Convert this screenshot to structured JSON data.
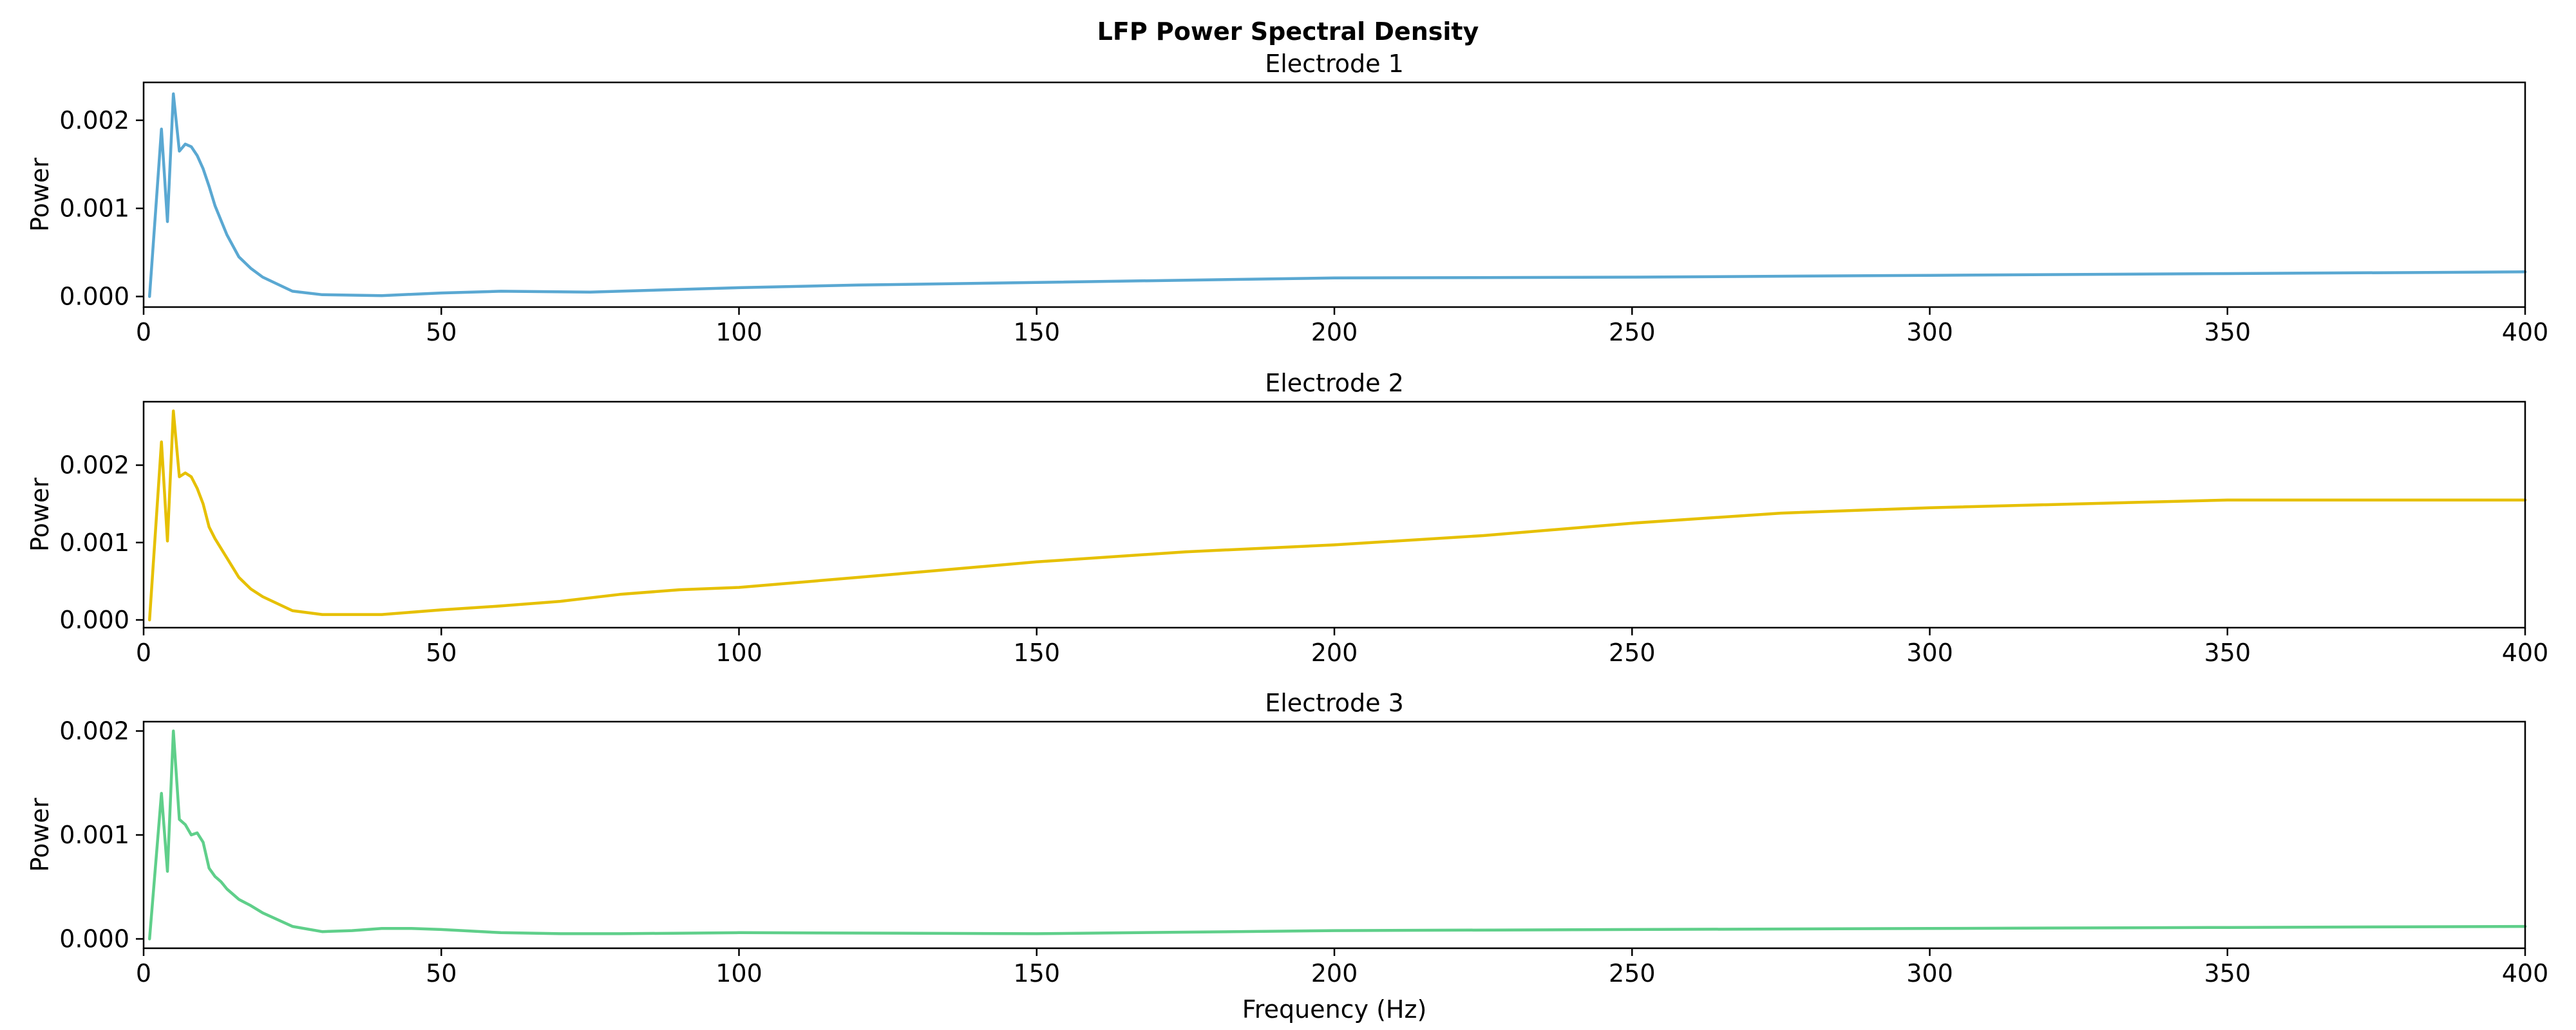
{
  "figure": {
    "title": "LFP Power Spectral Density"
  },
  "chart_data": [
    {
      "type": "line",
      "title": "Electrode 1",
      "xlabel": "",
      "ylabel": "Power",
      "xlim": [
        0,
        400
      ],
      "ylim": [
        -0.00012,
        0.00243
      ],
      "xticks": [
        0,
        50,
        100,
        150,
        200,
        250,
        300,
        350,
        400
      ],
      "xtick_labels": [
        "0",
        "50",
        "100",
        "150",
        "200",
        "250",
        "300",
        "350",
        "400"
      ],
      "yticks": [
        0,
        0.001,
        0.002
      ],
      "ytick_labels": [
        "0.000",
        "0.001",
        "0.002"
      ],
      "grid": false,
      "series": [
        {
          "color": "#5aa8d2",
          "x": [
            1,
            3,
            4,
            5,
            6,
            7,
            8,
            9,
            10,
            11,
            12,
            14,
            16,
            18,
            20,
            25,
            30,
            40,
            50,
            60,
            75,
            90,
            100,
            120,
            150,
            200,
            250,
            300,
            350,
            400
          ],
          "y": [
            0.0,
            0.0019,
            0.00085,
            0.0023,
            0.00165,
            0.00173,
            0.0017,
            0.0016,
            0.00145,
            0.00125,
            0.00103,
            0.0007,
            0.00045,
            0.00032,
            0.00022,
            6e-05,
            2e-05,
            1e-05,
            4e-05,
            6e-05,
            5e-05,
            8e-05,
            0.0001,
            0.00013,
            0.00016,
            0.00021,
            0.00022,
            0.00024,
            0.00026,
            0.00028
          ]
        }
      ]
    },
    {
      "type": "line",
      "title": "Electrode 2",
      "xlabel": "",
      "ylabel": "Power",
      "xlim": [
        0,
        400
      ],
      "ylim": [
        -0.0001,
        0.00282
      ],
      "xticks": [
        0,
        50,
        100,
        150,
        200,
        250,
        300,
        350,
        400
      ],
      "xtick_labels": [
        "0",
        "50",
        "100",
        "150",
        "200",
        "250",
        "300",
        "350",
        "400"
      ],
      "yticks": [
        0,
        0.001,
        0.002
      ],
      "ytick_labels": [
        "0.000",
        "0.001",
        "0.002"
      ],
      "grid": false,
      "series": [
        {
          "color": "#e6c000",
          "x": [
            1,
            3,
            4,
            5,
            6,
            7,
            8,
            9,
            10,
            11,
            12,
            14,
            16,
            18,
            20,
            25,
            30,
            40,
            50,
            60,
            70,
            80,
            90,
            100,
            120,
            150,
            175,
            200,
            225,
            250,
            275,
            300,
            350,
            400
          ],
          "y": [
            0.0,
            0.0023,
            0.00102,
            0.0027,
            0.00185,
            0.0019,
            0.00185,
            0.0017,
            0.0015,
            0.0012,
            0.00105,
            0.0008,
            0.00055,
            0.0004,
            0.0003,
            0.00012,
            7e-05,
            7e-05,
            0.00013,
            0.00018,
            0.00024,
            0.00033,
            0.00039,
            0.00042,
            0.00055,
            0.00075,
            0.00088,
            0.00097,
            0.00109,
            0.00125,
            0.00138,
            0.00145,
            0.00155,
            0.00155
          ]
        }
      ]
    },
    {
      "type": "line",
      "title": "Electrode 3",
      "xlabel": "Frequency (Hz)",
      "ylabel": "Power",
      "xlim": [
        0,
        400
      ],
      "ylim": [
        -9e-05,
        0.00209
      ],
      "xticks": [
        0,
        50,
        100,
        150,
        200,
        250,
        300,
        350,
        400
      ],
      "xtick_labels": [
        "0",
        "50",
        "100",
        "150",
        "200",
        "250",
        "300",
        "350",
        "400"
      ],
      "yticks": [
        0,
        0.001,
        0.002
      ],
      "ytick_labels": [
        "0.000",
        "0.001",
        "0.002"
      ],
      "grid": false,
      "series": [
        {
          "color": "#5fcf8a",
          "x": [
            1,
            3,
            4,
            5,
            6,
            7,
            8,
            9,
            10,
            11,
            12,
            13,
            14,
            16,
            18,
            20,
            25,
            30,
            35,
            40,
            45,
            50,
            60,
            70,
            80,
            100,
            150,
            200,
            250,
            300,
            350,
            400
          ],
          "y": [
            0.0,
            0.0014,
            0.00065,
            0.002,
            0.00115,
            0.0011,
            0.001,
            0.00102,
            0.00093,
            0.00068,
            0.0006,
            0.00055,
            0.00048,
            0.00038,
            0.00032,
            0.00025,
            0.00012,
            7e-05,
            8e-05,
            0.0001,
            0.0001,
            9e-05,
            6e-05,
            5e-05,
            5e-05,
            6e-05,
            5e-05,
            8e-05,
            9e-05,
            0.0001,
            0.00011,
            0.00012
          ]
        }
      ]
    }
  ]
}
